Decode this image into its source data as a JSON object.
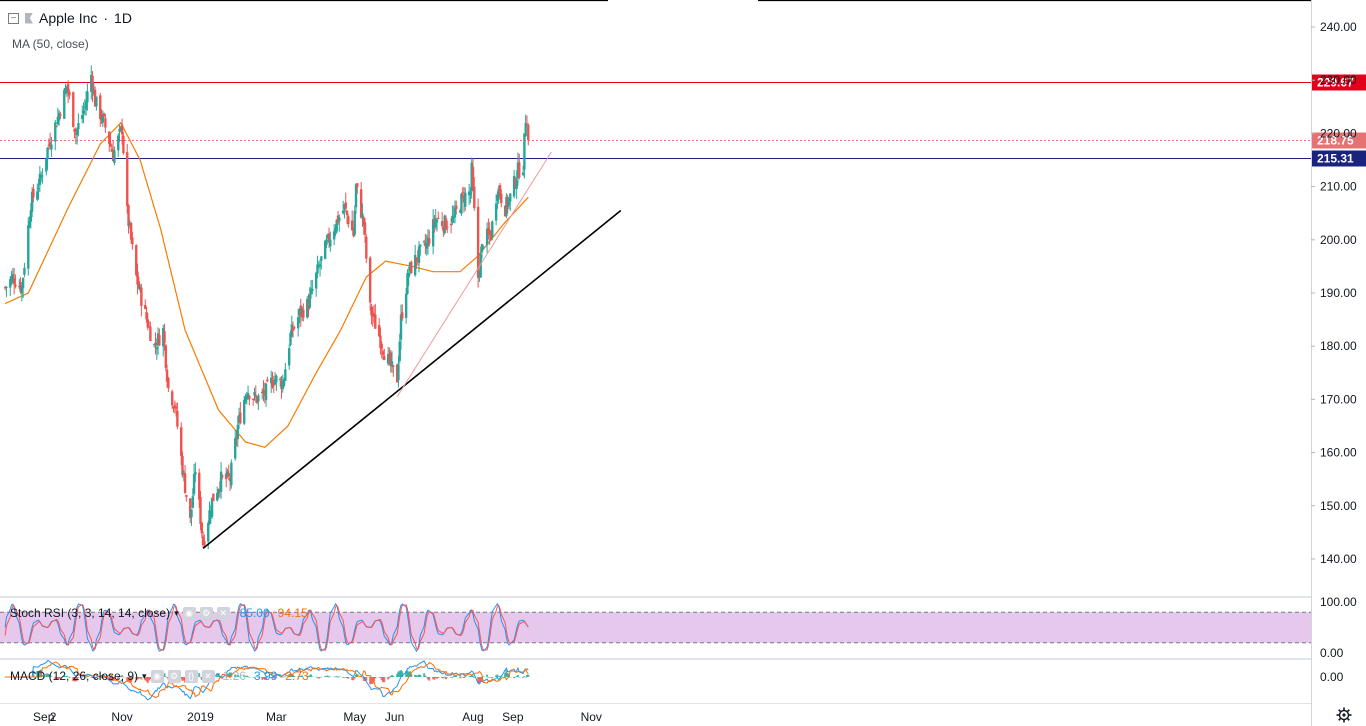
{
  "header": {
    "symbol_title": "Apple Inc",
    "interval": "1D",
    "ma_label": "MA (50, close)"
  },
  "colors": {
    "up": "#26a69a",
    "down": "#ef5350",
    "ma": "#f57c00",
    "resistance": "#e3001b",
    "support": "#1a237e",
    "trendline": "#000000",
    "stoch_k": "#2196f3",
    "stoch_d": "#ff5252",
    "stoch_band": "#e1bee7"
  },
  "chart_data": [
    {
      "type": "candlestick",
      "title": "Apple Inc · 1D",
      "ylim": [
        133,
        243
      ],
      "y_ticks": [
        "240.00",
        "230.00",
        "220.00",
        "210.00",
        "200.00",
        "190.00",
        "180.00",
        "170.00",
        "160.00",
        "150.00",
        "140.00"
      ],
      "x_ticks": [
        "2",
        "Sep",
        "Nov",
        "2019",
        "Mar",
        "May",
        "Jun",
        "Aug",
        "Sep",
        "Nov"
      ],
      "price_labels": [
        {
          "value": 229.67,
          "text": "229.67",
          "color": "#e3001b",
          "style": "solid"
        },
        {
          "value": 218.75,
          "text": "218.75",
          "color": "#e57373",
          "style": "dotted"
        },
        {
          "value": 215.31,
          "text": "215.31",
          "color": "#1a237e",
          "style": "solid"
        }
      ],
      "ohlc_anchor_closes": [
        [
          "2018-08-02",
          191
        ],
        [
          "2018-08-08",
          193
        ],
        [
          "2018-08-15",
          191
        ],
        [
          "2018-08-22",
          207
        ],
        [
          "2018-08-29",
          211
        ],
        [
          "2018-09-05",
          218
        ],
        [
          "2018-09-12",
          223
        ],
        [
          "2018-09-19",
          229
        ],
        [
          "2018-09-26",
          220
        ],
        [
          "2018-10-03",
          225
        ],
        [
          "2018-10-08",
          231
        ],
        [
          "2018-10-11",
          226
        ],
        [
          "2018-10-18",
          222
        ],
        [
          "2018-10-25",
          216
        ],
        [
          "2018-11-01",
          221
        ],
        [
          "2018-11-05",
          205
        ],
        [
          "2018-11-12",
          193
        ],
        [
          "2018-11-19",
          186
        ],
        [
          "2018-11-26",
          180
        ],
        [
          "2018-12-03",
          183
        ],
        [
          "2018-12-07",
          172
        ],
        [
          "2018-12-12",
          169
        ],
        [
          "2018-12-18",
          157
        ],
        [
          "2018-12-24",
          147
        ],
        [
          "2018-12-28",
          157
        ],
        [
          "2019-01-03",
          143
        ],
        [
          "2019-01-10",
          151
        ],
        [
          "2019-01-17",
          155
        ],
        [
          "2019-01-24",
          155
        ],
        [
          "2019-01-30",
          165
        ],
        [
          "2019-02-06",
          172
        ],
        [
          "2019-02-13",
          170
        ],
        [
          "2019-02-20",
          171
        ],
        [
          "2019-02-27",
          174
        ],
        [
          "2019-03-06",
          173
        ],
        [
          "2019-03-12",
          182
        ],
        [
          "2019-03-19",
          186
        ],
        [
          "2019-03-26",
          188
        ],
        [
          "2019-04-02",
          194
        ],
        [
          "2019-04-09",
          199
        ],
        [
          "2019-04-16",
          203
        ],
        [
          "2019-04-23",
          206
        ],
        [
          "2019-04-30",
          201
        ],
        [
          "2019-05-02",
          210
        ],
        [
          "2019-05-08",
          203
        ],
        [
          "2019-05-13",
          187
        ],
        [
          "2019-05-20",
          182
        ],
        [
          "2019-05-24",
          179
        ],
        [
          "2019-05-31",
          175
        ],
        [
          "2019-06-03",
          174
        ],
        [
          "2019-06-06",
          185
        ],
        [
          "2019-06-12",
          194
        ],
        [
          "2019-06-19",
          197
        ],
        [
          "2019-06-26",
          199
        ],
        [
          "2019-07-03",
          204
        ],
        [
          "2019-07-10",
          203
        ],
        [
          "2019-07-17",
          204
        ],
        [
          "2019-07-24",
          208
        ],
        [
          "2019-07-30",
          209
        ],
        [
          "2019-07-31",
          213
        ],
        [
          "2019-08-05",
          193
        ],
        [
          "2019-08-09",
          200
        ],
        [
          "2019-08-15",
          201
        ],
        [
          "2019-08-20",
          210
        ],
        [
          "2019-08-26",
          206
        ],
        [
          "2019-08-30",
          208
        ],
        [
          "2019-09-05",
          213
        ],
        [
          "2019-09-09",
          214
        ],
        [
          "2019-09-11",
          223
        ],
        [
          "2019-09-12",
          223
        ],
        [
          "2019-09-13",
          218.75
        ]
      ],
      "ma_50_anchor": [
        [
          "2018-08-02",
          188
        ],
        [
          "2018-08-20",
          190
        ],
        [
          "2018-09-20",
          206
        ],
        [
          "2018-10-15",
          218
        ],
        [
          "2018-10-31",
          222
        ],
        [
          "2018-11-15",
          215
        ],
        [
          "2018-12-01",
          202
        ],
        [
          "2018-12-20",
          183
        ],
        [
          "2019-01-15",
          168
        ],
        [
          "2019-02-05",
          162
        ],
        [
          "2019-02-20",
          161
        ],
        [
          "2019-03-10",
          165
        ],
        [
          "2019-04-01",
          175
        ],
        [
          "2019-04-20",
          183
        ],
        [
          "2019-05-10",
          193
        ],
        [
          "2019-05-25",
          196
        ],
        [
          "2019-06-15",
          195
        ],
        [
          "2019-07-01",
          194
        ],
        [
          "2019-07-22",
          194
        ],
        [
          "2019-08-05",
          197
        ],
        [
          "2019-08-25",
          203
        ],
        [
          "2019-09-13",
          208
        ]
      ],
      "trendlines": [
        {
          "name": "support-trendline",
          "from": [
            "2019-01-03",
            142
          ],
          "to": [
            "2019-11-24",
            205.5
          ]
        },
        {
          "name": "rising-trendline",
          "from": [
            "2019-06-03",
            170.5
          ],
          "to": [
            "2019-10-01",
            216.5
          ]
        }
      ]
    },
    {
      "type": "line",
      "title": "Stoch RSI (3, 3, 14, 14, close)",
      "legend_values": [
        "85.00",
        "94.15"
      ],
      "ylim": [
        0,
        100
      ],
      "y_ticks": [
        "100.00",
        "0.00"
      ],
      "band": [
        20,
        80
      ]
    },
    {
      "type": "histogram+line",
      "title": "MACD (12, 26, close, 9)",
      "legend_values": [
        "1.26",
        "3.99",
        "2.73"
      ],
      "y_ticks": [
        "0.00"
      ]
    }
  ]
}
